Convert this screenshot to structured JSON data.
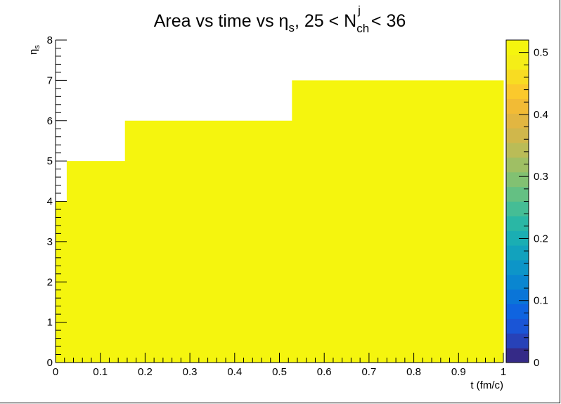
{
  "chart_data": {
    "type": "heatmap",
    "title": {
      "main": "Area vs time vs η",
      "main_sub": "s",
      "middle": ", 25 < N",
      "sup": "j",
      "sub": "ch",
      "end": " < 36"
    },
    "xlabel": "t (fm/c)",
    "ylabel": {
      "main": "η",
      "sub": "s"
    },
    "xlim": [
      0,
      1
    ],
    "ylim": [
      0,
      8
    ],
    "x_ticks": [
      "0",
      "0.1",
      "0.2",
      "0.3",
      "0.4",
      "0.5",
      "0.6",
      "0.7",
      "0.8",
      "0.9",
      "1"
    ],
    "y_ticks": [
      "0",
      "1",
      "2",
      "3",
      "4",
      "5",
      "6",
      "7",
      "8"
    ],
    "z_ticks": [
      "0",
      "0.1",
      "0.2",
      "0.3",
      "0.4",
      "0.5"
    ],
    "zlim": [
      0,
      0.52
    ],
    "region_value": 0.52,
    "region_steps": [
      {
        "t_start": 0.0,
        "t_end": 0.025,
        "eta_max": 4
      },
      {
        "t_start": 0.025,
        "t_end": 0.155,
        "eta_max": 5
      },
      {
        "t_start": 0.155,
        "t_end": 0.528,
        "eta_max": 6
      },
      {
        "t_start": 0.528,
        "t_end": 1.0,
        "eta_max": 7
      }
    ],
    "colorbar_colors": [
      "#352a87",
      "#2742b8",
      "#1a55d6",
      "#0f64e0",
      "#0a75d8",
      "#0a86d0",
      "#0d95c8",
      "#12a2bd",
      "#1aaeb3",
      "#2ab7a5",
      "#45bd95",
      "#64c083",
      "#82c172",
      "#9fbf64",
      "#babc57",
      "#d0b74b",
      "#e2b641",
      "#f2bb35",
      "#fbc92c",
      "#f8dc22",
      "#f5ee17",
      "#f5f50e"
    ],
    "grid": false
  }
}
